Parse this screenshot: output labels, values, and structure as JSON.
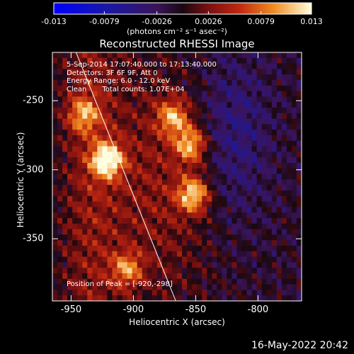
{
  "chart_data": {
    "type": "heatmap",
    "title": "Reconstructed RHESSI Image",
    "xlabel": "Heliocentric X (arcsec)",
    "ylabel": "Heliocentric Y (arcsec)",
    "xlim": [
      -965,
      -765
    ],
    "ylim": [
      -395,
      -215
    ],
    "xticks": [
      "-950",
      "-900",
      "-850",
      "-800"
    ],
    "xtick_values": [
      -950,
      -900,
      -850,
      -800
    ],
    "yticks": [
      "-250",
      "-300",
      "-350"
    ],
    "ytick_values": [
      -250,
      -300,
      -350
    ],
    "colorbar": {
      "ticks": [
        "-0.013",
        "-0.0079",
        "-0.0026",
        "0.0026",
        "0.0079",
        "0.013"
      ],
      "tick_values": [
        -0.013,
        -0.0079,
        -0.0026,
        0.0026,
        0.0079,
        0.013
      ],
      "range": [
        -0.013,
        0.013
      ],
      "units": "(photons cm⁻² s⁻¹ asec⁻²)"
    },
    "annotations": {
      "time": "5-Sep-2014 17:07:40.000 to 17:13:40.000",
      "detectors": "Detectors: 3F 6F 9F, Att 0",
      "energy": "Energy Range: 6.0 - 12.0 keV",
      "method": "Clean",
      "counts": "Total counts: 1.07E+04",
      "peak": "Position of Peak = [-920,-298]"
    },
    "peak": {
      "x": -920,
      "y": -298
    },
    "bright_sources": [
      {
        "x": -921,
        "y": -293,
        "intensity": 0.013
      },
      {
        "x": -852,
        "y": -318,
        "intensity": 0.011
      },
      {
        "x": -854,
        "y": -282,
        "intensity": 0.01
      },
      {
        "x": -868,
        "y": -262,
        "intensity": 0.009
      },
      {
        "x": -940,
        "y": -260,
        "intensity": 0.008
      },
      {
        "x": -905,
        "y": -372,
        "intensity": 0.008
      }
    ],
    "limb_line": [
      [
        -946,
        -215
      ],
      [
        -866,
        -395
      ]
    ]
  },
  "footer": {
    "date": "16-May-2022 20:42"
  }
}
